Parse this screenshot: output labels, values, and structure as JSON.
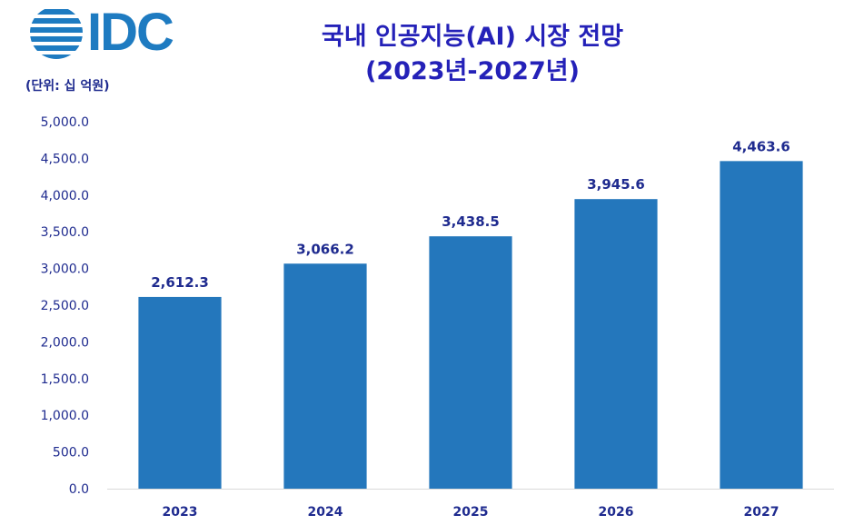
{
  "logo": {
    "text": "IDC",
    "color": "#1e7bc1"
  },
  "unit_label": "(단위: 십 억원)",
  "chart_data": {
    "type": "bar",
    "title": "국내 인공지능(AI) 시장 전망",
    "subtitle": "(2023년-2027년)",
    "categories": [
      "2023",
      "2024",
      "2025",
      "2026",
      "2027"
    ],
    "values": [
      2612.3,
      3066.2,
      3438.5,
      3945.6,
      4463.6
    ],
    "data_labels": [
      "2,612.3",
      "3,066.2",
      "3,438.5",
      "3,945.6",
      "4,463.6"
    ],
    "yticks": [
      "0.0",
      "500.0",
      "1,000.0",
      "1,500.0",
      "2,000.0",
      "2,500.0",
      "3,000.0",
      "3,500.0",
      "4,000.0",
      "4,500.0",
      "5,000.0"
    ],
    "ylim": [
      0,
      5000
    ],
    "grid": false,
    "legend": "none",
    "bar_color": "#2477bc",
    "label_color": "#1f2b8f",
    "title_color": "#2421b8"
  }
}
